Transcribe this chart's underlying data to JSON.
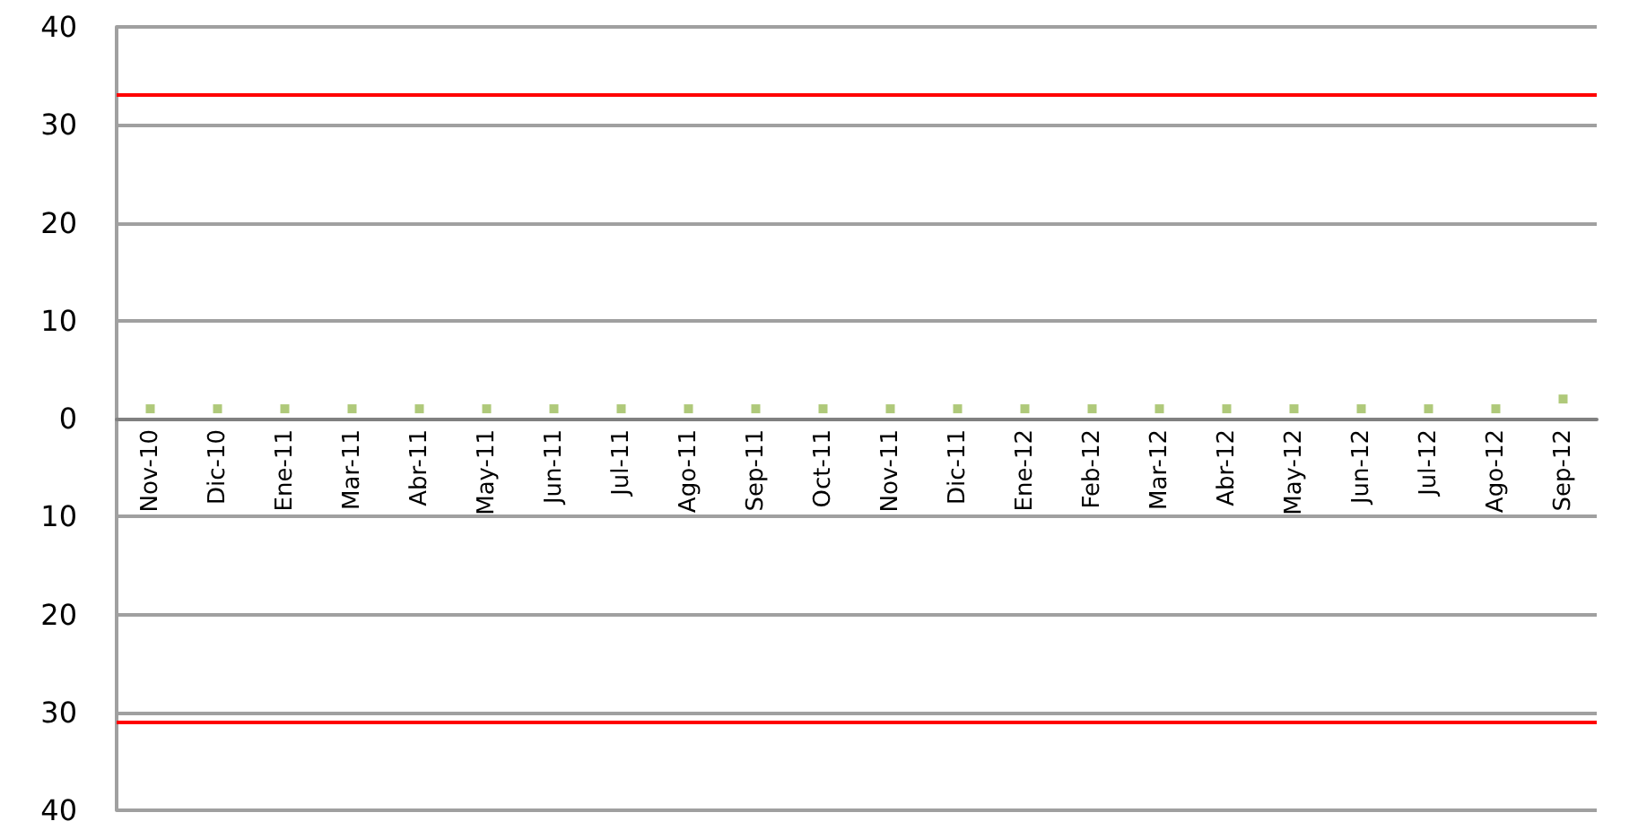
{
  "chart_data": {
    "type": "scatter",
    "categories": [
      "Nov-10",
      "Dic-10",
      "Ene-11",
      "Mar-11",
      "Abr-11",
      "May-11",
      "Jun-11",
      "Jul-11",
      "Ago-11",
      "Sep-11",
      "Oct-11",
      "Nov-11",
      "Dic-11",
      "Ene-12",
      "Feb-12",
      "Mar-12",
      "Abr-12",
      "May-12",
      "Jun-12",
      "Jul-12",
      "Ago-12",
      "Sep-12"
    ],
    "series": [
      {
        "color": "#9bbb59",
        "values": [
          1,
          1,
          1,
          1,
          1,
          1,
          1,
          1,
          1,
          1,
          1,
          1,
          1,
          1,
          1,
          1,
          1,
          1,
          1,
          1,
          1,
          2
        ]
      }
    ],
    "ylim": [
      -40,
      40
    ],
    "yticks": [
      {
        "value": -40,
        "label": "40"
      },
      {
        "value": -30,
        "label": "30"
      },
      {
        "value": -20,
        "label": "20"
      },
      {
        "value": -10,
        "label": "10"
      },
      0,
      10,
      20,
      30,
      40
    ],
    "ref_lines": [
      {
        "axis": "y",
        "value": 33,
        "color": "#ff0000"
      },
      {
        "axis": "y",
        "value": -31,
        "color": "#ff0000"
      }
    ],
    "grid": "y",
    "marker": "square"
  }
}
